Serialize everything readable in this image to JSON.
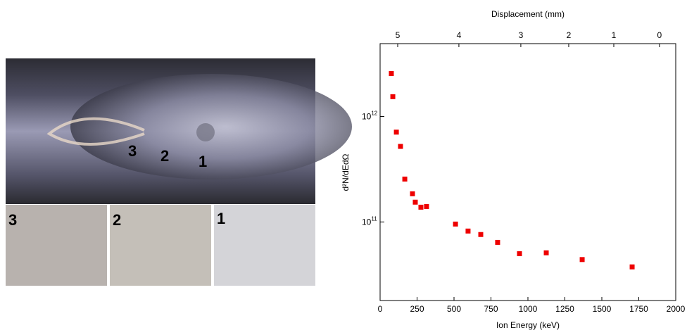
{
  "photo": {
    "main_labels": [
      "3",
      "2",
      "1"
    ],
    "inset_labels": [
      "3",
      "2",
      "1"
    ]
  },
  "chart_data": {
    "type": "scatter",
    "xlabel": "Ion Energy (keV)",
    "x2label": "Displacement (mm)",
    "ylabel": "d²N/dEdΩ",
    "color": "#ee0000",
    "log_y": true,
    "x": [
      76,
      86,
      110,
      138,
      167,
      219,
      238,
      276,
      314,
      510,
      595,
      681,
      795,
      943,
      1124,
      1367,
      1705
    ],
    "values": [
      2550000000000.0,
      1540000000000.0,
      710000000000.0,
      520000000000.0,
      255000000000.0,
      185000000000.0,
      154000000000.0,
      138000000000.0,
      140000000000.0,
      95500000000.0,
      82000000000.0,
      76000000000.0,
      64000000000.0,
      50000000000.0,
      51000000000.0,
      44000000000.0,
      37500000000.0
    ],
    "xlim": [
      0,
      2000
    ],
    "xticks": [
      0,
      250,
      500,
      750,
      1000,
      1250,
      1500,
      1750,
      2000
    ],
    "x2ticks": [
      {
        "value": 119,
        "label": "5"
      },
      {
        "value": 533,
        "label": "4"
      },
      {
        "value": 952,
        "label": "3"
      },
      {
        "value": 1276,
        "label": "2"
      },
      {
        "value": 1581,
        "label": "1"
      },
      {
        "value": 1890,
        "label": "0"
      }
    ],
    "ylim": [
      18000000000.0,
      4900000000000.0
    ],
    "yticks": [
      {
        "value": 100000000000.0,
        "label": "10",
        "exponent": "11"
      },
      {
        "value": 1000000000000.0,
        "label": "10",
        "exponent": "12"
      }
    ]
  }
}
